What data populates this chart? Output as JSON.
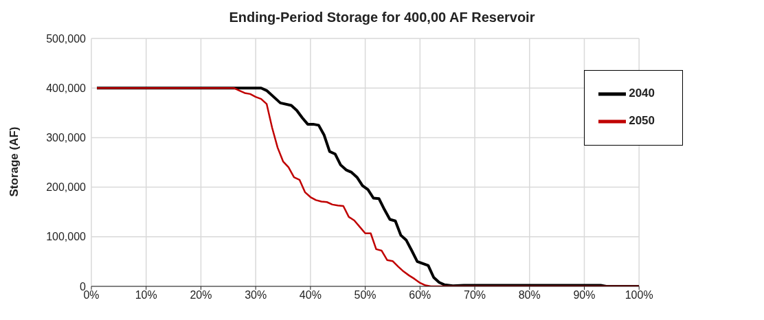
{
  "chart_data": {
    "type": "line",
    "title": "Ending-Period Storage for 400,00 AF Reservoir",
    "ylabel": "Storage (AF)",
    "xlim": [
      0,
      100
    ],
    "xticks": [
      {
        "value": 0,
        "label": "0%"
      },
      {
        "value": 10,
        "label": "10%"
      },
      {
        "value": 20,
        "label": "20%"
      },
      {
        "value": 30,
        "label": "30%"
      },
      {
        "value": 40,
        "label": "40%"
      },
      {
        "value": 50,
        "label": "50%"
      },
      {
        "value": 60,
        "label": "60%"
      },
      {
        "value": 70,
        "label": "70%"
      },
      {
        "value": 80,
        "label": "80%"
      },
      {
        "value": 90,
        "label": "90%"
      },
      {
        "value": 100,
        "label": "100%"
      }
    ],
    "ylim": [
      0,
      500000
    ],
    "yticks": [
      {
        "value": 0,
        "label": "0"
      },
      {
        "value": 100000,
        "label": "100,000"
      },
      {
        "value": 200000,
        "label": "200,000"
      },
      {
        "value": 300000,
        "label": "300,000"
      },
      {
        "value": 400000,
        "label": "400,000"
      },
      {
        "value": 500000,
        "label": "500,000"
      }
    ],
    "grid": true,
    "legend": "top right",
    "marker": "none",
    "line_style": "solid",
    "series": [
      {
        "name": "2040",
        "color": "#000000",
        "x": [
          1,
          31,
          32,
          33.5,
          34.5,
          36.5,
          37.5,
          38.5,
          39.5,
          40.5,
          41.5,
          42.5,
          43.5,
          44.5,
          45.5,
          46.5,
          47.5,
          48.5,
          49.5,
          50.5,
          51.5,
          52.5,
          53.5,
          54.5,
          55.5,
          56.5,
          57.5,
          58.5,
          59.5,
          61.5,
          62.5,
          63.5,
          64.5,
          66,
          68,
          93,
          94,
          100
        ],
        "values": [
          400000,
          400000,
          395000,
          380000,
          370000,
          365000,
          355000,
          340000,
          327000,
          327000,
          325000,
          305000,
          272000,
          267000,
          245000,
          235000,
          230000,
          220000,
          203000,
          195000,
          178000,
          177000,
          155000,
          135000,
          132000,
          103000,
          93000,
          72000,
          50000,
          42000,
          18000,
          8000,
          3000,
          1000,
          2000,
          2000,
          0,
          0
        ]
      },
      {
        "name": "2050",
        "color": "#c00000",
        "x": [
          1,
          26,
          27,
          28,
          29,
          30,
          31,
          32,
          33,
          34,
          35,
          36,
          37,
          38,
          39,
          40,
          41,
          42,
          43,
          44,
          45,
          46,
          47,
          48,
          49,
          50,
          51,
          52,
          53,
          54,
          55,
          56,
          57,
          58,
          59,
          60,
          61,
          62,
          100
        ],
        "values": [
          400000,
          400000,
          395000,
          390000,
          388000,
          382000,
          378000,
          368000,
          320000,
          280000,
          252000,
          240000,
          220000,
          215000,
          190000,
          180000,
          174000,
          171000,
          170000,
          165000,
          163000,
          162000,
          140000,
          133000,
          120000,
          107000,
          107000,
          75000,
          72000,
          53000,
          51000,
          40000,
          30000,
          22000,
          15000,
          7000,
          2000,
          0,
          0
        ]
      }
    ]
  }
}
